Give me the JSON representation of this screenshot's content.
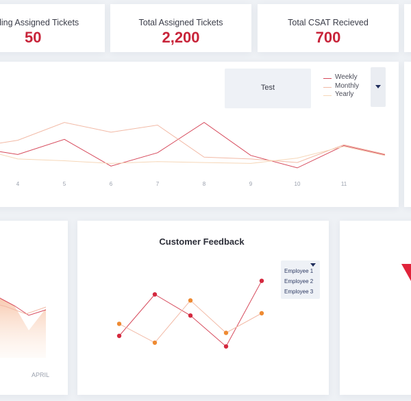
{
  "stats": [
    {
      "label": "nding Assigned Tickets",
      "value": "50"
    },
    {
      "label": "Total Assigned Tickets",
      "value": "2,200"
    },
    {
      "label": "Total CSAT Recieved",
      "value": "700"
    }
  ],
  "trend": {
    "select_value": "Test",
    "periods": [
      "Weekly",
      "Monthly",
      "Yearly"
    ],
    "selected_period": "Weekly",
    "x_ticks": [
      "4",
      "5",
      "6",
      "7",
      "8",
      "9",
      "10",
      "11"
    ]
  },
  "area_card": {
    "x_label": "APRIL"
  },
  "feedback": {
    "title": "Customer Feedback",
    "employees": [
      "Employee 1",
      "Employee 2",
      "Employee 3"
    ]
  },
  "colors": {
    "accent_red": "#c8243a",
    "line_red": "#d6485a",
    "line_peach": "#f2b9a5",
    "line_light": "#f6d7b8",
    "dot_orange": "#ee8a32",
    "dot_red": "#d4283e",
    "dropdown_caret": "#1f2d5c"
  },
  "chart_data": [
    {
      "type": "line",
      "title": "",
      "x": [
        "4",
        "5",
        "6",
        "7",
        "8",
        "9",
        "10",
        "11"
      ],
      "series": [
        {
          "name": "Weekly",
          "values": [
            4.2,
            5.9,
            2.9,
            4.4,
            7.8,
            4.1,
            2.7,
            5.2
          ]
        },
        {
          "name": "Monthly",
          "values": [
            5.8,
            7.8,
            6.7,
            7.5,
            3.9,
            3.7,
            3.3,
            5.3
          ]
        },
        {
          "name": "Yearly",
          "values": [
            3.7,
            3.5,
            3.2,
            3.4,
            3.3,
            3.2,
            3.8,
            5.1
          ]
        }
      ]
    },
    {
      "type": "scatter",
      "title": "Customer Feedback",
      "series": [
        {
          "name": "Employee 1",
          "color": "#d4283e",
          "points": [
            [
              1,
              2.0
            ],
            [
              2,
              7.5
            ],
            [
              3,
              4.7
            ],
            [
              4,
              0.6
            ],
            [
              5,
              9.3
            ]
          ]
        },
        {
          "name": "Employee 2",
          "color": "#ee8a32",
          "points": [
            [
              1,
              3.6
            ],
            [
              2,
              1.1
            ],
            [
              3,
              6.7
            ],
            [
              4,
              2.4
            ],
            [
              5,
              5.0
            ]
          ]
        }
      ]
    }
  ]
}
